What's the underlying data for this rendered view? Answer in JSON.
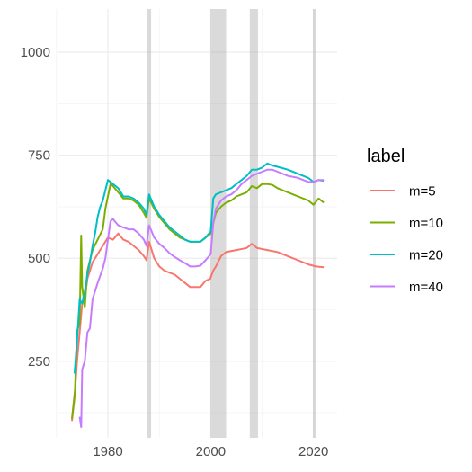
{
  "chart_data": {
    "type": "line",
    "xlabel": "",
    "ylabel": "",
    "xlim": [
      1970.2,
      2024.6
    ],
    "ylim": [
      64,
      1105
    ],
    "x_ticks": [
      1980,
      2000,
      2020
    ],
    "x_minor_ticks": [
      1970,
      1990,
      2010
    ],
    "y_ticks": [
      250,
      500,
      750,
      1000
    ],
    "y_minor_ticks": [
      125,
      375,
      625,
      875
    ],
    "grid": true,
    "legend_position": "right",
    "legend_title": "label",
    "shaded_periods": [
      [
        1987.6,
        1988.4
      ],
      [
        2000.0,
        2003.0
      ],
      [
        2007.6,
        2009.2
      ],
      [
        2019.9,
        2020.4
      ]
    ],
    "series": [
      {
        "name": "m=5",
        "color": "#F8766D",
        "points": [
          [
            1973.0,
            105
          ],
          [
            1973.5,
            160
          ],
          [
            1974.0,
            250
          ],
          [
            1974.5,
            320
          ],
          [
            1975.0,
            390
          ],
          [
            1975.5,
            400
          ],
          [
            1976.0,
            450
          ],
          [
            1977.0,
            490
          ],
          [
            1978.0,
            510
          ],
          [
            1979.0,
            530
          ],
          [
            1980.0,
            550
          ],
          [
            1981.0,
            545
          ],
          [
            1982.0,
            560
          ],
          [
            1983.0,
            545
          ],
          [
            1984.0,
            540
          ],
          [
            1985.0,
            530
          ],
          [
            1986.0,
            520
          ],
          [
            1987.0,
            505
          ],
          [
            1987.5,
            495
          ],
          [
            1988.0,
            540
          ],
          [
            1989.0,
            500
          ],
          [
            1990.0,
            480
          ],
          [
            1991.0,
            470
          ],
          [
            1992.0,
            465
          ],
          [
            1993.0,
            460
          ],
          [
            1994.0,
            450
          ],
          [
            1995.0,
            440
          ],
          [
            1996.0,
            430
          ],
          [
            1997.0,
            430
          ],
          [
            1998.0,
            430
          ],
          [
            1999.0,
            445
          ],
          [
            1999.9,
            450
          ],
          [
            2000.5,
            470
          ],
          [
            2001.0,
            480
          ],
          [
            2002.0,
            505
          ],
          [
            2003.0,
            515
          ],
          [
            2005.0,
            520
          ],
          [
            2007.0,
            525
          ],
          [
            2008.0,
            535
          ],
          [
            2009.0,
            525
          ],
          [
            2011.0,
            520
          ],
          [
            2013.0,
            515
          ],
          [
            2015.0,
            505
          ],
          [
            2017.0,
            495
          ],
          [
            2019.0,
            485
          ],
          [
            2020.5,
            480
          ],
          [
            2022.0,
            478
          ]
        ]
      },
      {
        "name": "m=10",
        "color": "#7CAE00",
        "points": [
          [
            1973.0,
            110
          ],
          [
            1973.6,
            180
          ],
          [
            1974.0,
            325
          ],
          [
            1974.5,
            340
          ],
          [
            1974.8,
            555
          ],
          [
            1975.0,
            430
          ],
          [
            1975.5,
            380
          ],
          [
            1976.0,
            470
          ],
          [
            1977.0,
            520
          ],
          [
            1978.0,
            545
          ],
          [
            1979.0,
            570
          ],
          [
            1979.5,
            620
          ],
          [
            1980.0,
            650
          ],
          [
            1980.5,
            680
          ],
          [
            1981.0,
            675
          ],
          [
            1982.0,
            660
          ],
          [
            1983.0,
            645
          ],
          [
            1984.0,
            645
          ],
          [
            1985.0,
            640
          ],
          [
            1986.0,
            630
          ],
          [
            1987.0,
            610
          ],
          [
            1987.5,
            598
          ],
          [
            1988.0,
            645
          ],
          [
            1989.0,
            620
          ],
          [
            1990.0,
            600
          ],
          [
            1991.0,
            585
          ],
          [
            1992.0,
            570
          ],
          [
            1993.0,
            560
          ],
          [
            1994.0,
            550
          ],
          [
            1995.0,
            545
          ],
          [
            1996.0,
            540
          ],
          [
            1997.0,
            540
          ],
          [
            1998.0,
            540
          ],
          [
            1999.0,
            550
          ],
          [
            2000.0,
            560
          ],
          [
            2001.0,
            610
          ],
          [
            2002.0,
            625
          ],
          [
            2003.0,
            635
          ],
          [
            2004.0,
            640
          ],
          [
            2005.0,
            650
          ],
          [
            2007.0,
            660
          ],
          [
            2008.0,
            675
          ],
          [
            2009.0,
            670
          ],
          [
            2010.0,
            680
          ],
          [
            2011.0,
            680
          ],
          [
            2012.0,
            678
          ],
          [
            2013.0,
            670
          ],
          [
            2015.0,
            660
          ],
          [
            2017.0,
            650
          ],
          [
            2019.0,
            640
          ],
          [
            2020.0,
            630
          ],
          [
            2021.0,
            645
          ],
          [
            2022.0,
            635
          ]
        ]
      },
      {
        "name": "m=20",
        "color": "#00BFC4",
        "points": [
          [
            1973.5,
            220
          ],
          [
            1974.0,
            300
          ],
          [
            1974.5,
            400
          ],
          [
            1975.0,
            390
          ],
          [
            1975.5,
            420
          ],
          [
            1976.0,
            460
          ],
          [
            1976.5,
            490
          ],
          [
            1977.0,
            530
          ],
          [
            1977.5,
            560
          ],
          [
            1978.0,
            600
          ],
          [
            1978.5,
            625
          ],
          [
            1979.0,
            640
          ],
          [
            1979.5,
            665
          ],
          [
            1980.0,
            690
          ],
          [
            1980.5,
            685
          ],
          [
            1981.0,
            680
          ],
          [
            1982.0,
            670
          ],
          [
            1983.0,
            650
          ],
          [
            1984.0,
            650
          ],
          [
            1985.0,
            645
          ],
          [
            1986.0,
            635
          ],
          [
            1987.0,
            620
          ],
          [
            1987.5,
            605
          ],
          [
            1988.0,
            655
          ],
          [
            1989.0,
            625
          ],
          [
            1990.0,
            605
          ],
          [
            1991.0,
            590
          ],
          [
            1992.0,
            575
          ],
          [
            1993.0,
            565
          ],
          [
            1994.0,
            555
          ],
          [
            1995.0,
            545
          ],
          [
            1996.0,
            540
          ],
          [
            1997.0,
            540
          ],
          [
            1998.0,
            540
          ],
          [
            1999.0,
            550
          ],
          [
            2000.0,
            565
          ],
          [
            2000.5,
            645
          ],
          [
            2001.0,
            655
          ],
          [
            2002.0,
            660
          ],
          [
            2003.0,
            665
          ],
          [
            2004.0,
            670
          ],
          [
            2005.0,
            680
          ],
          [
            2006.0,
            690
          ],
          [
            2007.0,
            700
          ],
          [
            2008.0,
            715
          ],
          [
            2009.0,
            715
          ],
          [
            2010.0,
            720
          ],
          [
            2011.0,
            730
          ],
          [
            2012.0,
            725
          ],
          [
            2013.0,
            722
          ],
          [
            2015.0,
            715
          ],
          [
            2017.0,
            705
          ],
          [
            2019.0,
            695
          ],
          [
            2020.0,
            685
          ],
          [
            2021.0,
            690
          ],
          [
            2022.0,
            688
          ]
        ]
      },
      {
        "name": "m=40",
        "color": "#C77CFF",
        "points": [
          [
            1974.5,
            115
          ],
          [
            1974.8,
            90
          ],
          [
            1975.0,
            230
          ],
          [
            1975.5,
            250
          ],
          [
            1976.0,
            320
          ],
          [
            1976.5,
            330
          ],
          [
            1977.0,
            400
          ],
          [
            1977.5,
            420
          ],
          [
            1978.0,
            440
          ],
          [
            1979.0,
            475
          ],
          [
            1979.5,
            500
          ],
          [
            1980.0,
            545
          ],
          [
            1980.5,
            590
          ],
          [
            1981.0,
            595
          ],
          [
            1982.0,
            580
          ],
          [
            1983.0,
            575
          ],
          [
            1984.0,
            570
          ],
          [
            1985.0,
            570
          ],
          [
            1986.0,
            560
          ],
          [
            1987.0,
            545
          ],
          [
            1987.5,
            530
          ],
          [
            1988.0,
            580
          ],
          [
            1989.0,
            550
          ],
          [
            1990.0,
            535
          ],
          [
            1991.0,
            525
          ],
          [
            1992.0,
            512
          ],
          [
            1993.0,
            503
          ],
          [
            1994.0,
            495
          ],
          [
            1995.0,
            488
          ],
          [
            1996.0,
            480
          ],
          [
            1997.0,
            480
          ],
          [
            1998.0,
            482
          ],
          [
            1999.0,
            495
          ],
          [
            2000.0,
            510
          ],
          [
            2000.5,
            585
          ],
          [
            2001.0,
            620
          ],
          [
            2002.0,
            640
          ],
          [
            2003.0,
            650
          ],
          [
            2004.0,
            655
          ],
          [
            2005.0,
            665
          ],
          [
            2006.0,
            680
          ],
          [
            2007.0,
            690
          ],
          [
            2008.0,
            700
          ],
          [
            2009.0,
            705
          ],
          [
            2010.0,
            710
          ],
          [
            2011.0,
            715
          ],
          [
            2012.0,
            715
          ],
          [
            2013.0,
            710
          ],
          [
            2015.0,
            700
          ],
          [
            2017.0,
            695
          ],
          [
            2019.0,
            685
          ],
          [
            2020.0,
            685
          ],
          [
            2021.0,
            690
          ],
          [
            2022.0,
            690
          ]
        ]
      }
    ]
  }
}
